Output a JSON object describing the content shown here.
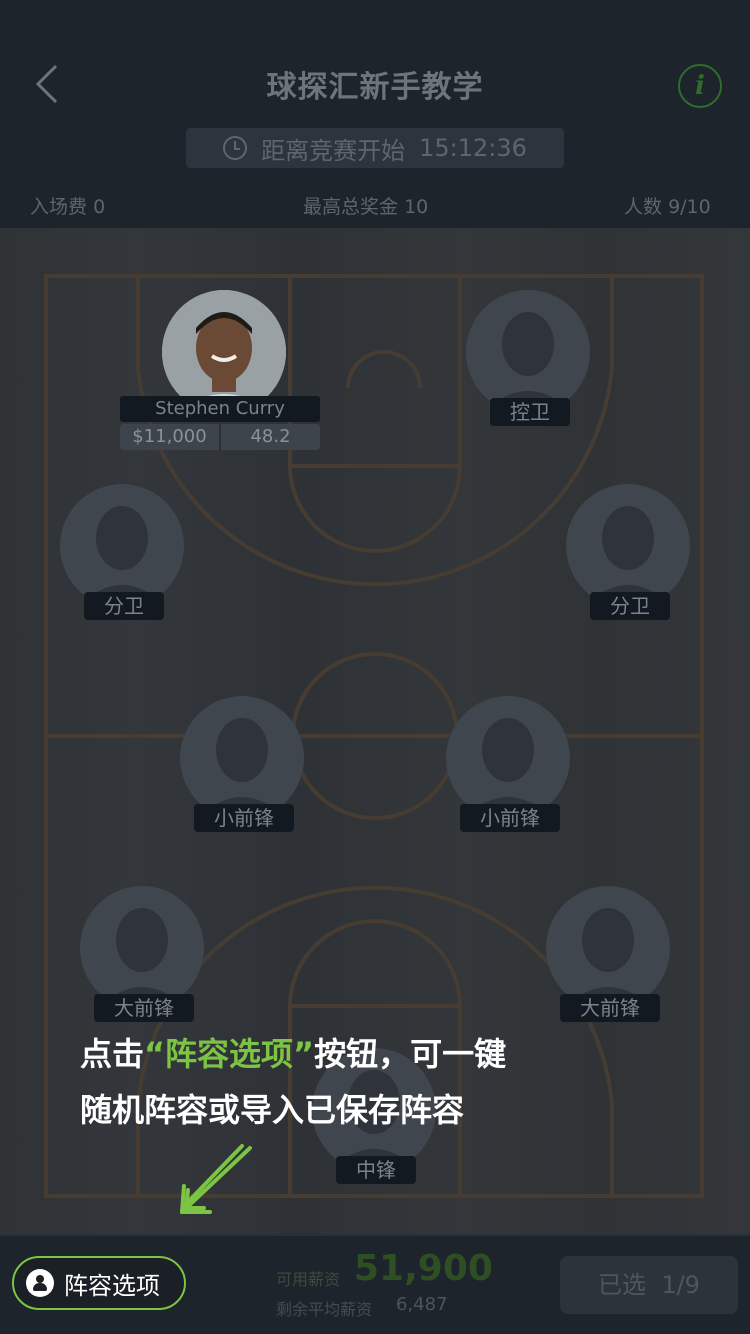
{
  "header": {
    "title": "球探汇新手教学",
    "timer_label": "距离竞赛开始",
    "timer_value": "15:12:36",
    "entry_fee_label": "入场费",
    "entry_fee_value": "0",
    "prize_label": "最高总奖金",
    "prize_value": "10",
    "players_label": "人数",
    "players_value": "9/10"
  },
  "roster": {
    "pg1": {
      "name": "Stephen Curry",
      "salary": "$11,000",
      "score": "48.2"
    },
    "pg2": {
      "label": "控卫"
    },
    "sg1": {
      "label": "分卫"
    },
    "sg2": {
      "label": "分卫"
    },
    "sf1": {
      "label": "小前锋"
    },
    "sf2": {
      "label": "小前锋"
    },
    "pf1": {
      "label": "大前锋"
    },
    "pf2": {
      "label": "大前锋"
    },
    "c": {
      "label": "中锋"
    }
  },
  "tutorial": {
    "line1_pre": "点击",
    "line1_highlight": "“阵容选项”",
    "line1_post": "按钮，可一键",
    "line2": "随机阵容或导入已保存阵容"
  },
  "bottom": {
    "lineup_button": "阵容选项",
    "available_salary_label": "可用薪资",
    "available_salary_value": "51,900",
    "avg_salary_label": "剩余平均薪资",
    "avg_salary_value": "6,487",
    "selected_label": "已选",
    "selected_value": "1/9"
  },
  "colors": {
    "accent": "#7cc443",
    "header_bg": "#1d242c",
    "position_label_bg": "#121920"
  },
  "icons": [
    "back-icon",
    "info-icon",
    "clock-icon",
    "lineup-icon",
    "arrow-icon"
  ]
}
